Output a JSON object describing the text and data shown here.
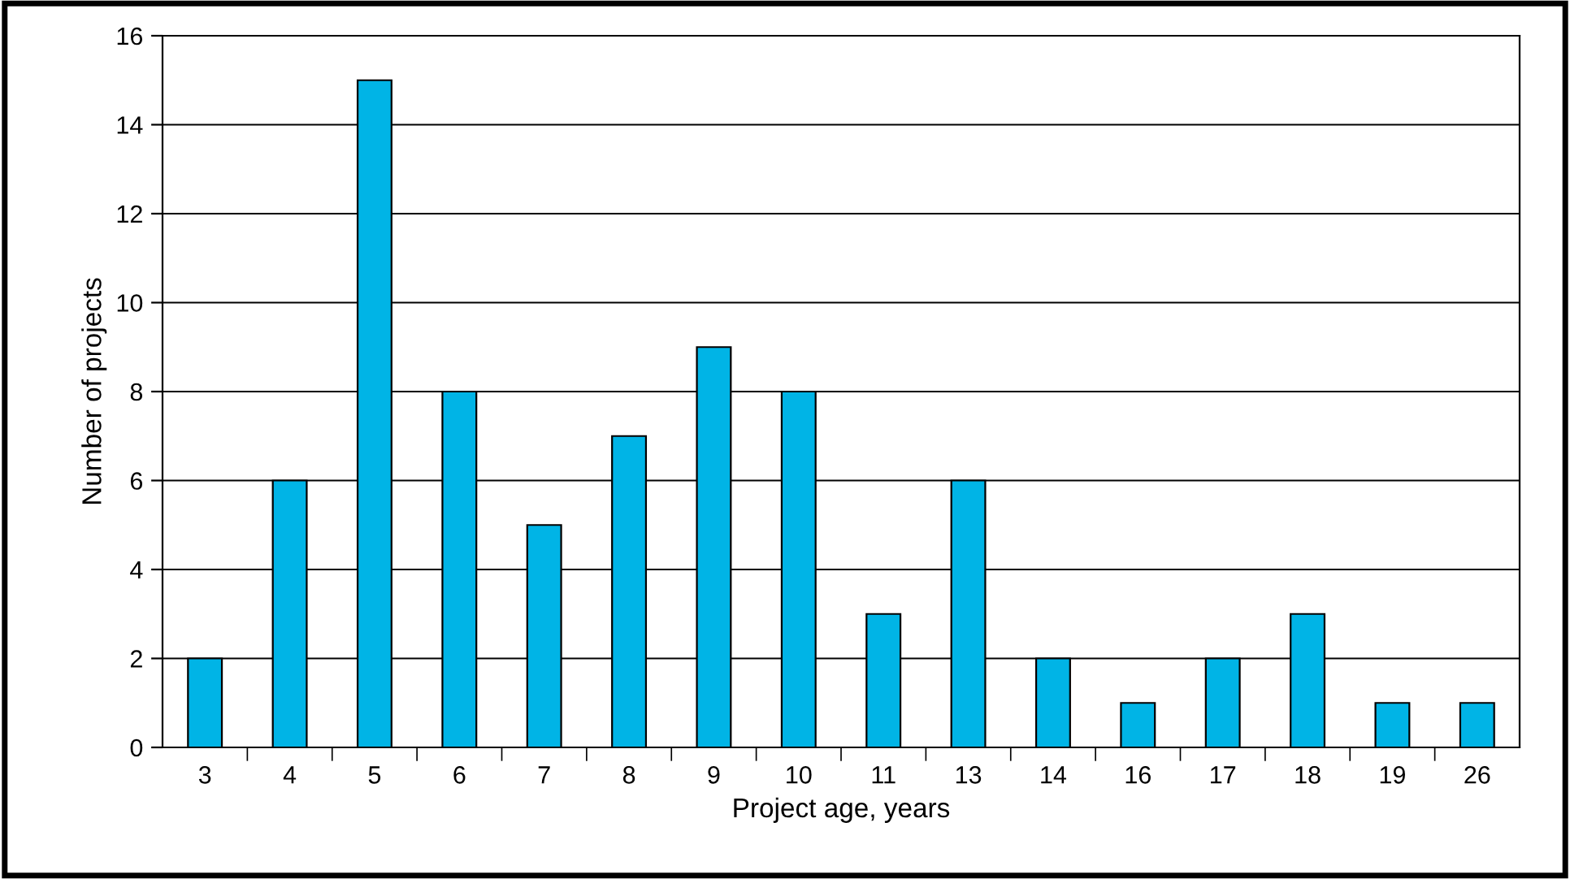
{
  "chart_data": {
    "type": "bar",
    "xlabel": "Project age, years",
    "ylabel": "Number of projects",
    "categories": [
      "3",
      "4",
      "5",
      "6",
      "7",
      "8",
      "9",
      "10",
      "11",
      "13",
      "14",
      "16",
      "17",
      "18",
      "19",
      "26"
    ],
    "values": [
      2,
      6,
      15,
      8,
      5,
      7,
      9,
      8,
      3,
      6,
      2,
      1,
      2,
      3,
      1,
      1
    ],
    "color": "#00b4e6",
    "ylim": [
      0,
      16
    ],
    "yticks": [
      0,
      2,
      4,
      6,
      8,
      10,
      12,
      14,
      16
    ],
    "grid": "y"
  }
}
